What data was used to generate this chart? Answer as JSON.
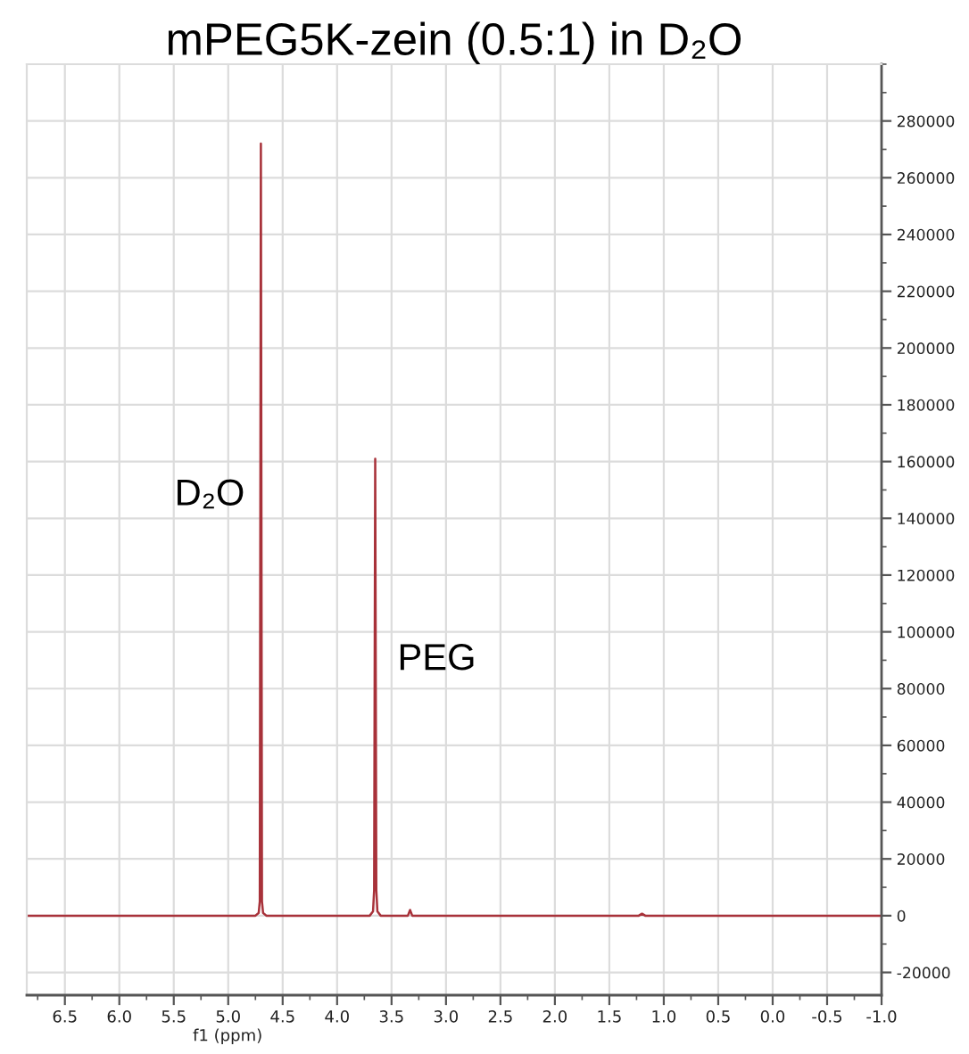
{
  "chart_data": {
    "type": "line",
    "title": "mPEG5K-zein (0.5:1) in D₂O",
    "xlabel": "f1 (ppm)",
    "x": [
      6.85,
      4.75,
      4.72,
      4.71,
      4.7,
      4.69,
      4.68,
      4.65,
      3.7,
      3.67,
      3.66,
      3.65,
      3.64,
      3.63,
      3.6,
      3.35,
      3.33,
      3.31,
      1.23,
      1.2,
      1.17,
      -1.0
    ],
    "series": [
      {
        "color": "#a8323a",
        "values": [
          0,
          0,
          1000,
          5000,
          272000,
          5000,
          1000,
          0,
          0,
          1500,
          9000,
          161000,
          9000,
          1500,
          0,
          0,
          2000,
          0,
          0,
          700,
          0,
          0
        ]
      }
    ],
    "xlim": [
      6.85,
      -1.0
    ],
    "ylim": [
      -28000,
      300000
    ],
    "xticks": [
      6.5,
      {
        "value": 6,
        "label": "6.0"
      },
      5.5,
      {
        "value": 5,
        "label": "5.0"
      },
      4.5,
      {
        "value": 4,
        "label": "4.0"
      },
      3.5,
      {
        "value": 3,
        "label": "3.0"
      },
      2.5,
      {
        "value": 2,
        "label": "2.0"
      },
      1.5,
      {
        "value": 1,
        "label": "1.0"
      },
      0.5,
      {
        "value": 0,
        "label": "0.0"
      },
      -0.5,
      {
        "value": -1,
        "label": "-1.0"
      }
    ],
    "yticks": [
      -20000,
      0,
      20000,
      40000,
      60000,
      80000,
      100000,
      120000,
      140000,
      160000,
      180000,
      200000,
      220000,
      240000,
      260000,
      280000
    ],
    "grid": true,
    "marker": "none",
    "line_style": "solid",
    "annotations": [
      {
        "text": "D₂O",
        "x": 4.7,
        "y": 148000
      },
      {
        "text": "PEG",
        "x": 3.65,
        "y": 90000
      }
    ]
  }
}
